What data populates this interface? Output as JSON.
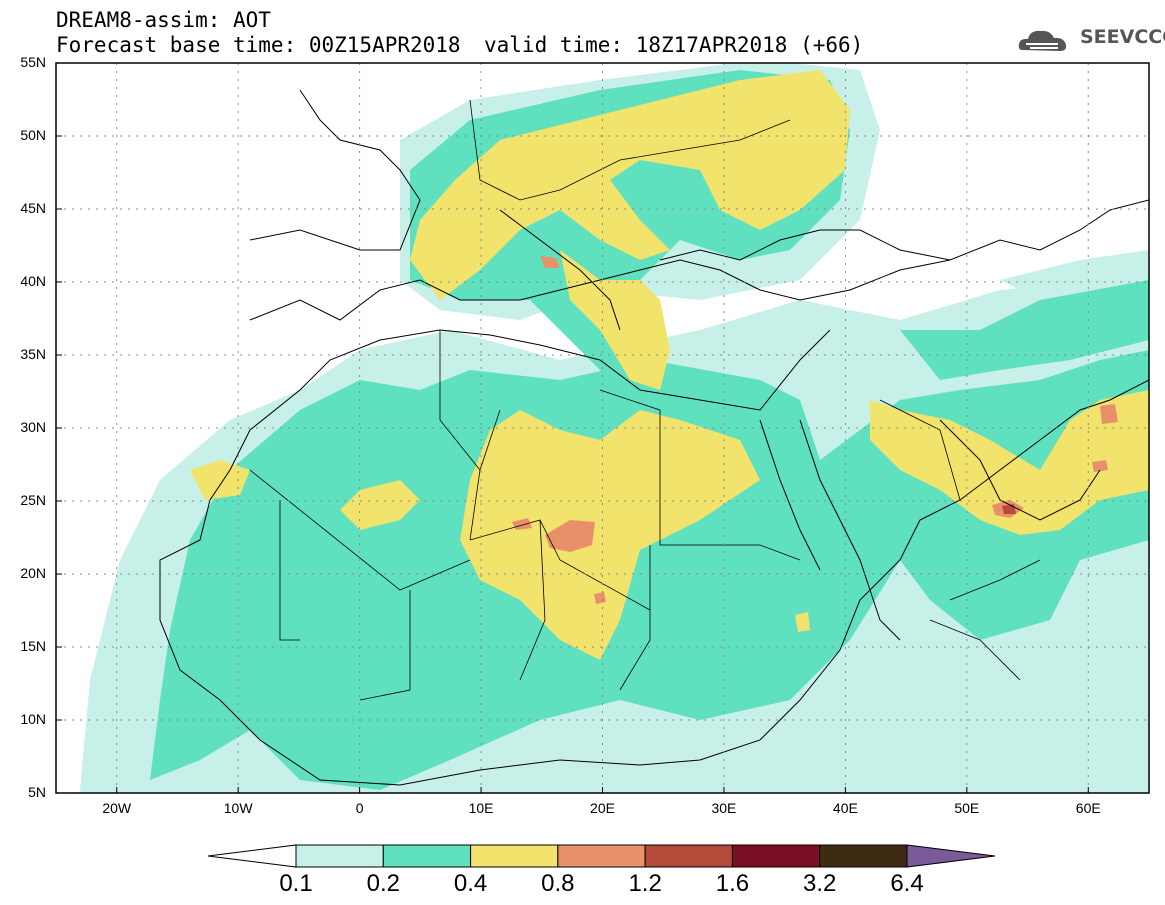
{
  "header": {
    "model_line": "DREAM8-assim: AOT",
    "base_line": "Forecast base time: 00Z15APR2018",
    "valid_line": "valid time: 18Z17APR2018 (+66)"
  },
  "logo": {
    "text": "SEEVCCC",
    "icon": "cloud-logo-icon"
  },
  "map": {
    "lat_labels": [
      "55N",
      "50N",
      "45N",
      "40N",
      "35N",
      "30N",
      "25N",
      "20N",
      "15N",
      "10N",
      "5N"
    ],
    "lon_labels": [
      "20W",
      "10W",
      "0",
      "10E",
      "20E",
      "30E",
      "40E",
      "50E",
      "60E"
    ],
    "grid": "dotted",
    "projection": "lat-lon"
  },
  "colorbar": {
    "labels": [
      "0.1",
      "0.2",
      "0.4",
      "0.8",
      "1.2",
      "1.6",
      "3.2",
      "6.4"
    ],
    "colors": [
      "#ffffff",
      "#c7f0e8",
      "#5fe0bf",
      "#f2e36d",
      "#e8906a",
      "#b54a3a",
      "#7a0f25",
      "#3f2a12",
      "#7b5a99"
    ]
  }
}
